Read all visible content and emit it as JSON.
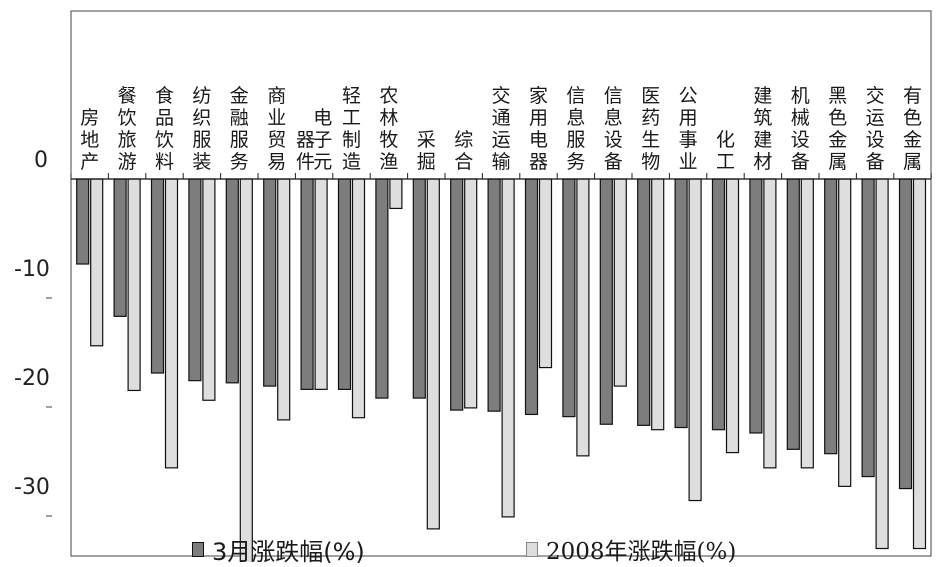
{
  "chart_data": {
    "type": "bar",
    "categories": [
      "房地产",
      "餐饮旅游",
      "食品饮料",
      "纺织服装",
      "金融服务",
      "商业贸易",
      "电子元器件",
      "轻工制造",
      "农林牧渔",
      "采掘",
      "综合",
      "交通运输",
      "家用电器",
      "信息服务",
      "信息设备",
      "医药生物",
      "公用事业",
      "化工",
      "建筑建材",
      "机械设备",
      "黑色金属",
      "交运设备",
      "有色金属"
    ],
    "series": [
      {
        "name": "3月涨跌幅(%)",
        "values": [
          -7.8,
          -12.6,
          -17.8,
          -18.5,
          -18.7,
          -19.0,
          -19.3,
          -19.3,
          -20.1,
          -20.1,
          -21.2,
          -21.3,
          -21.6,
          -21.8,
          -22.5,
          -22.6,
          -22.8,
          -23.0,
          -23.3,
          -24.8,
          -25.2,
          -27.3,
          -28.4
        ]
      },
      {
        "name": "2008年涨跌幅(%)",
        "values": [
          -15.3,
          -19.4,
          -26.5,
          -20.3,
          -35.4,
          -22.1,
          -19.3,
          -21.9,
          -2.7,
          -32.1,
          -21.0,
          -31.0,
          -17.3,
          -25.4,
          -19.0,
          -23.0,
          -29.5,
          -25.1,
          -26.5,
          -26.5,
          -28.2,
          -33.9,
          -33.9
        ]
      }
    ],
    "yaxis_ticks": [
      "0",
      "-10",
      "-20",
      "-30"
    ],
    "ylim": [
      -35,
      15
    ],
    "grid": false,
    "legend_position": "bottom",
    "colors": {
      "series1": "#7d7d7d",
      "series2": "#dedede",
      "outline": "#111111"
    }
  }
}
